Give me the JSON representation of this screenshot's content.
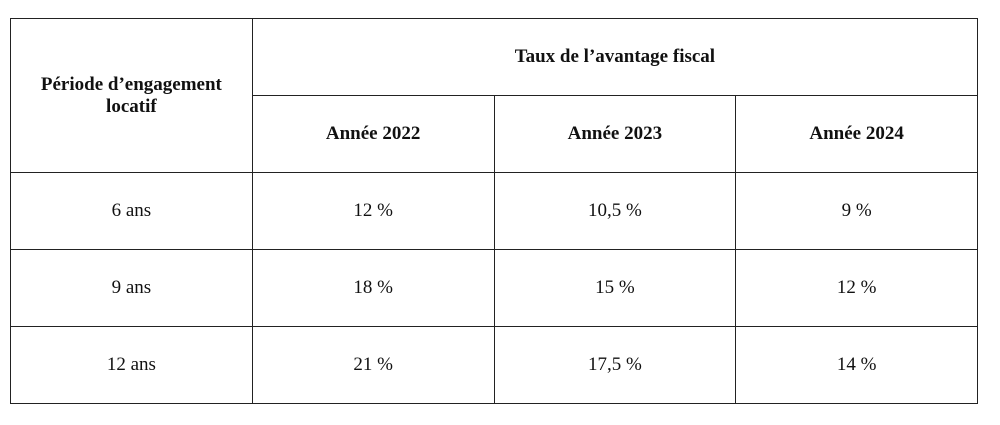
{
  "table": {
    "period_header": "Période d’engagement locatif",
    "group_header": "Taux de l’avantage fiscal",
    "columns": [
      "Année 2022",
      "Année 2023",
      "Année 2024"
    ],
    "rows": [
      [
        "6 ans",
        "12 %",
        "10,5 %",
        "9 %"
      ],
      [
        "9 ans",
        "18 %",
        "15 %",
        "12 %"
      ],
      [
        "12 ans",
        "21 %",
        "17,5 %",
        "14 %"
      ]
    ]
  }
}
